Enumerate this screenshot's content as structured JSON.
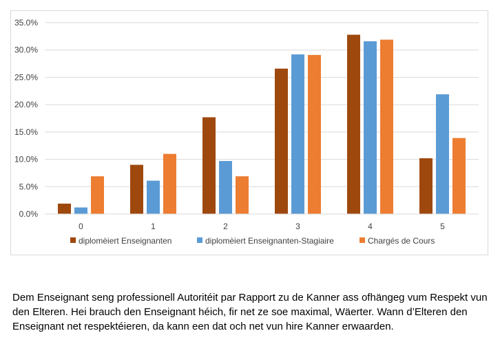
{
  "chart_data": {
    "type": "bar",
    "categories": [
      "0",
      "1",
      "2",
      "3",
      "4",
      "5"
    ],
    "series": [
      {
        "name": "diplomèiert Enseignanten",
        "color": "#9e480e",
        "values": [
          1.9,
          9.0,
          17.7,
          26.6,
          32.8,
          10.2
        ]
      },
      {
        "name": "diplomèiert Enseignanten-Stagiaire",
        "color": "#5b9bd5",
        "values": [
          1.2,
          6.1,
          9.7,
          29.2,
          31.6,
          21.9
        ]
      },
      {
        "name": "Chargés de Cours",
        "color": "#ed7d31",
        "values": [
          6.9,
          11.0,
          6.9,
          29.1,
          31.9,
          13.9
        ]
      }
    ],
    "ylim": [
      0,
      35
    ],
    "yticks": [
      "0.0%",
      "5.0%",
      "10.0%",
      "15.0%",
      "20.0%",
      "25.0%",
      "30.0%",
      "35.0%"
    ],
    "ytick_values": [
      0,
      5,
      10,
      15,
      20,
      25,
      30,
      35
    ],
    "grid": true,
    "legend_position": "bottom"
  },
  "caption": "Dem Enseignant seng professionell Autoritéit par Rapport zu de Kanner ass ofhängeg vum Respekt vun den Elteren. Hei brauch den Enseignant héich, fir net ze soe maximal, Wäerter. Wann d’Elteren den Enseignant net respektéieren, da kann een dat och net vun hire Kanner erwaarden."
}
